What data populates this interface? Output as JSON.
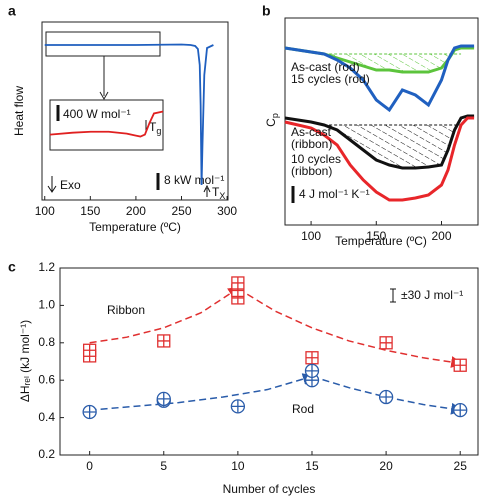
{
  "chart_data": [
    {
      "panel": "a",
      "type": "line",
      "x_label": "Temperature (ºC)",
      "y_label": "Heat flow",
      "xlim": [
        97,
        301
      ],
      "xticks": [
        100,
        150,
        200,
        250,
        300
      ],
      "ylim": [
        -155,
        23
      ],
      "series": [
        {
          "color": "#1f5fbf",
          "x": [
            100,
            150,
            200,
            250,
            260,
            265,
            268,
            270,
            271,
            272,
            273,
            275,
            278,
            285
          ],
          "values": [
            0,
            0,
            0,
            0.5,
            0,
            -1,
            -4,
            -20,
            -60,
            -140,
            -100,
            -30,
            -3,
            0
          ]
        }
      ],
      "inset": {
        "color": "#e02020",
        "xlim": [
          105,
          230
        ],
        "ylim": [
          -8,
          18
        ],
        "x": [
          105,
          130,
          150,
          170,
          190,
          200,
          205,
          210,
          215,
          220,
          230
        ],
        "values": [
          0,
          1,
          1.5,
          1.5,
          0.5,
          -0.5,
          -1,
          0,
          6,
          11,
          12
        ]
      },
      "annotations": {
        "inset_scale": "400 W mol⁻¹",
        "tg": {
          "main": "T",
          "sub": "g"
        },
        "exo": "Exo",
        "scale": "8 kW mol⁻¹",
        "tx": {
          "main": "T",
          "sub": "X"
        }
      }
    },
    {
      "panel": "b",
      "type": "line",
      "x_label": "Temperature (ºC)",
      "y_label": {
        "main": "C",
        "sub": "p"
      },
      "xlim": [
        80,
        228
      ],
      "xticks": [
        100,
        150,
        200
      ],
      "ylim": [
        0,
        207
      ],
      "x": [
        80,
        90,
        100,
        110,
        120,
        130,
        140,
        150,
        160,
        170,
        180,
        190,
        200,
        205,
        210,
        215,
        220,
        225
      ],
      "series": [
        {
          "name": [
            "As-cast (rod)"
          ],
          "color": "#5cc43c",
          "values": [
            177,
            175,
            173,
            171,
            167,
            163,
            159,
            155,
            155,
            153,
            153,
            153,
            157,
            165,
            175,
            177,
            177,
            177
          ]
        },
        {
          "name": [
            "15 cycles (rod)"
          ],
          "color": "#2060c0",
          "values": [
            177,
            175,
            173,
            171,
            165,
            157,
            145,
            125,
            115,
            135,
            130,
            120,
            145,
            165,
            177,
            179,
            179,
            179
          ]
        },
        {
          "name": [
            "As-cast",
            "(ribbon)"
          ],
          "color": "#111111",
          "values": [
            107,
            105,
            103,
            100,
            95,
            85,
            75,
            65,
            60,
            57,
            57,
            58,
            60,
            75,
            95,
            107,
            109,
            109
          ]
        },
        {
          "name": [
            "10 cycles",
            "(ribbon)"
          ],
          "color": "#e8262a",
          "values": [
            103,
            100,
            97,
            90,
            80,
            60,
            45,
            33,
            25,
            25,
            27,
            30,
            40,
            55,
            80,
            100,
            107,
            107
          ]
        }
      ],
      "annotations": {
        "scale": "4 J mol⁻¹ K⁻¹"
      }
    },
    {
      "panel": "c",
      "type": "scatter",
      "x_label": "Number of cycles",
      "y_label": "ΔHᵣₑₗ (kJ mol⁻¹)",
      "xlim": [
        -2,
        26.2
      ],
      "xticks": [
        0,
        5,
        10,
        15,
        20,
        25
      ],
      "ylim": [
        0.2,
        1.2
      ],
      "yticks": [
        0.2,
        0.4,
        0.6,
        0.8,
        {
          "value": 1,
          "label": "1.0"
        },
        1.2
      ],
      "series": [
        {
          "name": "Ribbon",
          "color": "#e03030",
          "marker": "square",
          "x": [
            0,
            0,
            5,
            10,
            10,
            10,
            15,
            20,
            25
          ],
          "values": [
            0.73,
            0.76,
            0.81,
            1.04,
            1.08,
            1.12,
            0.72,
            0.8,
            0.68
          ],
          "trend": [
            {
              "x": [
                0,
                2.5,
                5,
                7.5,
                10
              ],
              "values": [
                0.8,
                0.83,
                0.88,
                0.96,
                1.09
              ]
            },
            {
              "x": [
                10,
                12.5,
                15,
                17.5,
                20,
                22.5,
                25
              ],
              "values": [
                1.09,
                0.97,
                0.88,
                0.81,
                0.76,
                0.72,
                0.69
              ]
            }
          ]
        },
        {
          "name": "Rod",
          "color": "#2a5caa",
          "marker": "circle",
          "x": [
            0,
            5,
            5,
            10,
            15,
            15,
            20,
            25
          ],
          "values": [
            0.43,
            0.49,
            0.5,
            0.46,
            0.6,
            0.65,
            0.51,
            0.44
          ],
          "trend": [
            {
              "x": [
                0,
                3,
                6,
                9,
                12,
                15
              ],
              "values": [
                0.44,
                0.46,
                0.48,
                0.51,
                0.55,
                0.62
              ]
            },
            {
              "x": [
                15,
                17.5,
                20,
                22.5,
                25
              ],
              "values": [
                0.62,
                0.56,
                0.51,
                0.47,
                0.44
              ]
            }
          ]
        }
      ],
      "annotations": {
        "error": "±30 J mol⁻¹"
      }
    }
  ]
}
